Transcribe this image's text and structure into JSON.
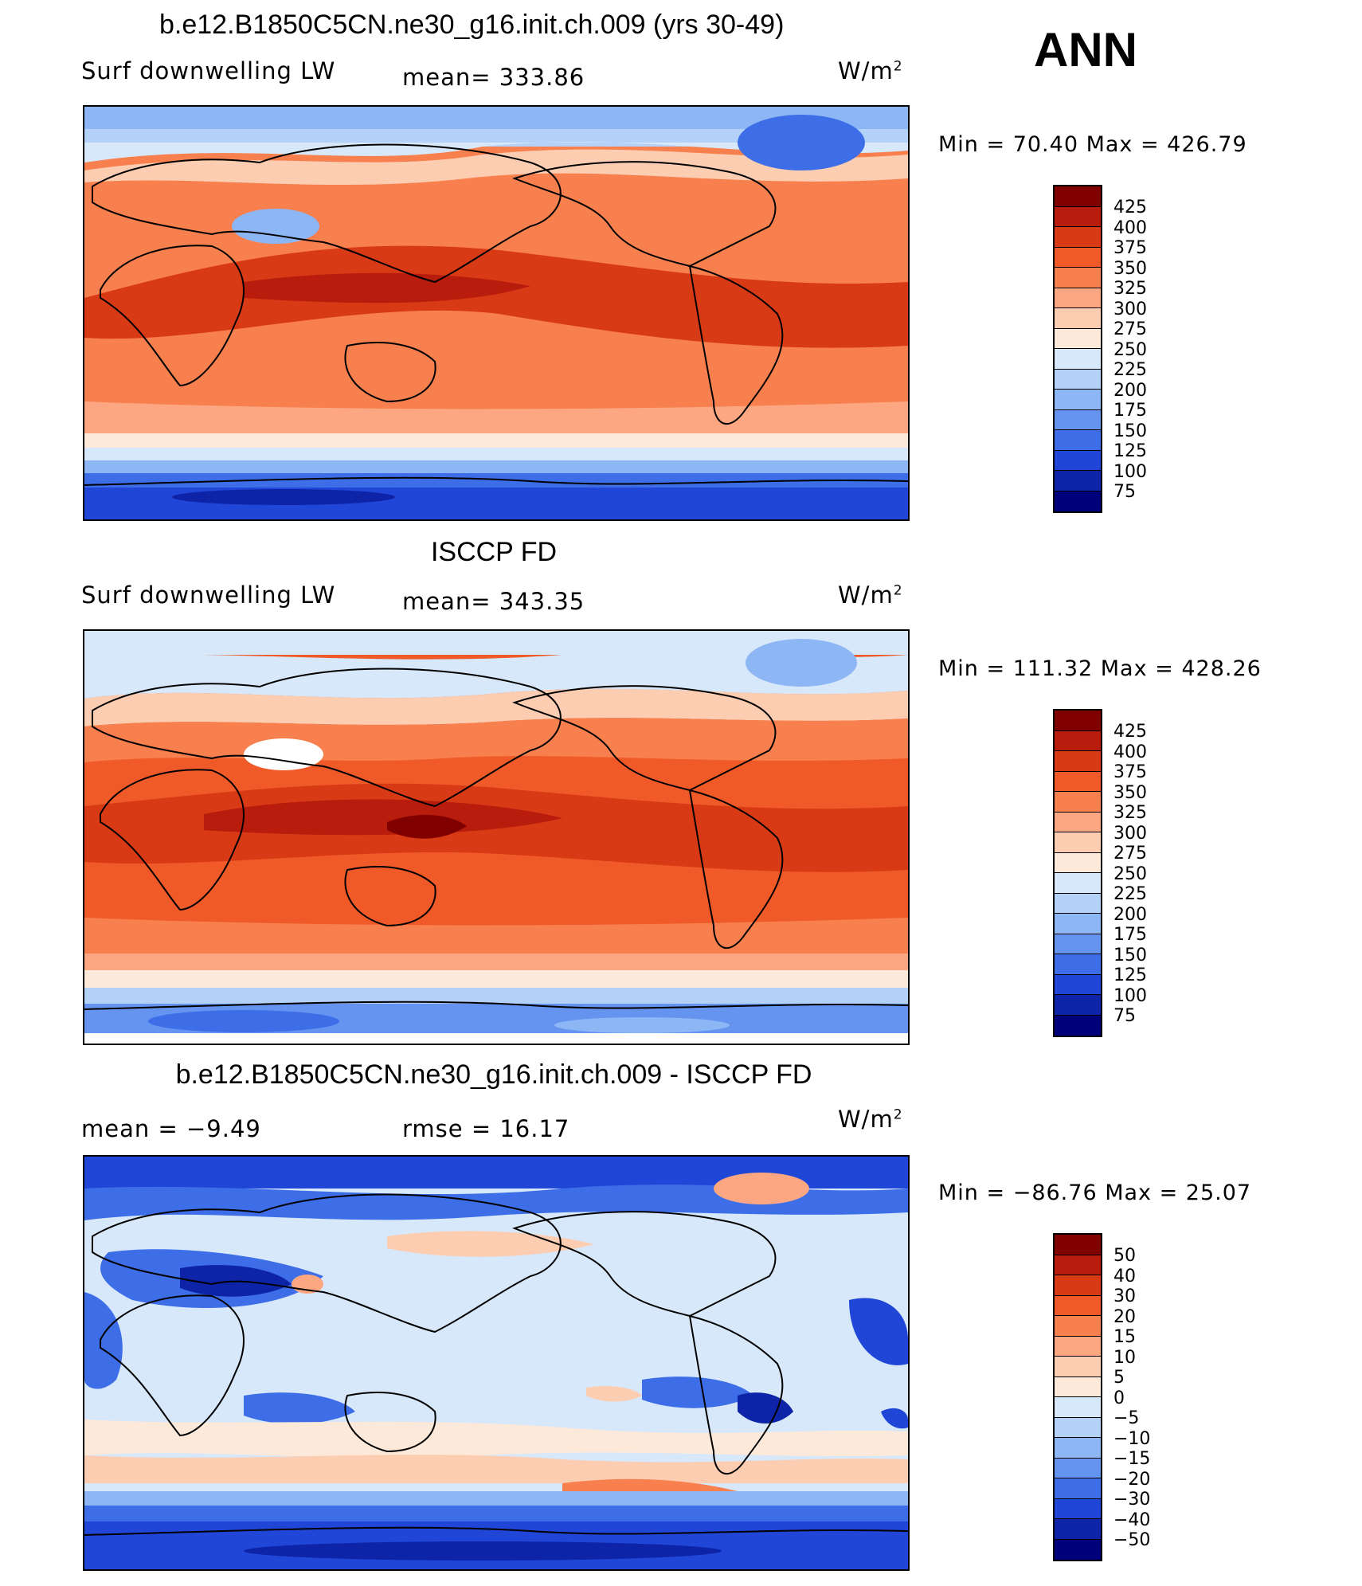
{
  "header": {
    "season": "ANN"
  },
  "panels": [
    {
      "title": "b.e12.B1850C5CN.ne30_g16.init.ch.009 (yrs 30-49)",
      "left_label": "Surf downwelling LW",
      "center_label": "mean=  333.86",
      "units": "W/m",
      "units_exp": "2",
      "minmax": "Min =   70.40  Max  =  426.79",
      "palette": "model",
      "levels": [
        "425",
        "400",
        "375",
        "350",
        "325",
        "300",
        "275",
        "250",
        "225",
        "200",
        "175",
        "150",
        "125",
        "100",
        "75"
      ]
    },
    {
      "title": "ISCCP FD",
      "left_label": "Surf downwelling LW",
      "center_label": "mean=  343.35",
      "units": "W/m",
      "units_exp": "2",
      "minmax": "Min  =  111.32  Max  =  428.26",
      "palette": "obs",
      "levels": [
        "425",
        "400",
        "375",
        "350",
        "325",
        "300",
        "275",
        "250",
        "225",
        "200",
        "175",
        "150",
        "125",
        "100",
        "75"
      ]
    },
    {
      "title": "b.e12.B1850C5CN.ne30_g16.init.ch.009 - ISCCP FD",
      "left_label": "mean  =    −9.49",
      "center_label": "rmse  =    16.17",
      "units": "W/m",
      "units_exp": "2",
      "minmax": "Min  =  −86.76  Max  =    25.07",
      "palette": "diff",
      "levels": [
        "50",
        "40",
        "30",
        "20",
        "15",
        "10",
        "5",
        "0",
        "−5",
        "−10",
        "−15",
        "−20",
        "−30",
        "−40",
        "−50"
      ]
    }
  ],
  "colors": {
    "scale": [
      "#800000",
      "#b81c0c",
      "#d93a16",
      "#ef5a28",
      "#f7804e",
      "#fca782",
      "#fdcdb2",
      "#fde9da",
      "#d6e8fa",
      "#b4d1f8",
      "#8db6f5",
      "#6594f0",
      "#3d6ee8",
      "#1f46d6",
      "#0d24a8",
      "#00007a"
    ]
  }
}
